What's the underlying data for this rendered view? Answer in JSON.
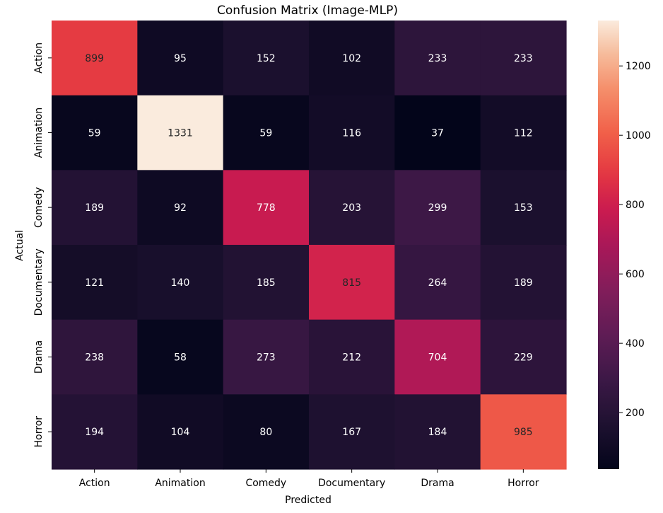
{
  "chart_data": {
    "type": "heatmap",
    "title": "Confusion Matrix (Image-MLP)",
    "xlabel": "Predicted",
    "ylabel": "Actual",
    "x_categories": [
      "Action",
      "Animation",
      "Comedy",
      "Documentary",
      "Drama",
      "Horror"
    ],
    "y_categories": [
      "Action",
      "Animation",
      "Comedy",
      "Documentary",
      "Drama",
      "Horror"
    ],
    "values": [
      [
        899,
        95,
        152,
        102,
        233,
        233
      ],
      [
        59,
        1331,
        59,
        116,
        37,
        112
      ],
      [
        189,
        92,
        778,
        203,
        299,
        153
      ],
      [
        121,
        140,
        185,
        815,
        264,
        189
      ],
      [
        238,
        58,
        273,
        212,
        704,
        229
      ],
      [
        194,
        104,
        80,
        167,
        184,
        985
      ]
    ],
    "colormap": "rocket",
    "colorbar": {
      "vmin": 37,
      "vmax": 1331,
      "ticks": [
        200,
        400,
        600,
        800,
        1000,
        1200
      ],
      "placement": "right"
    },
    "grid": false
  }
}
